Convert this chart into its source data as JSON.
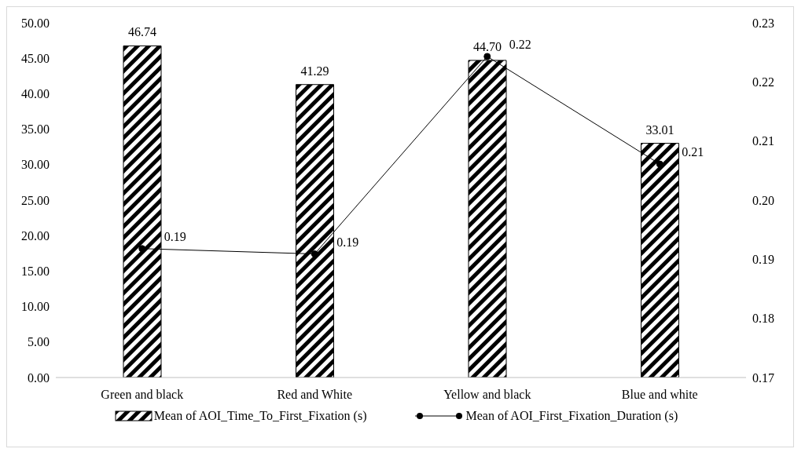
{
  "chart_data": {
    "type": "bar",
    "categories": [
      "Green and black",
      "Red and White",
      "Yellow and black",
      "Blue and white"
    ],
    "series": [
      {
        "name": "Mean of AOI_Time_To_First_Fixation (s)",
        "type": "bar",
        "color": "#000000",
        "values": [
          46.74,
          41.29,
          44.7,
          33.01
        ],
        "value_labels": [
          "46.74",
          "41.29",
          "44.70",
          "33.01"
        ]
      },
      {
        "name": "Mean of AOI_First_Fixation_Duration (s)",
        "type": "line",
        "axis": "y2",
        "color": "#000000",
        "values": [
          0.1918,
          0.1909,
          0.2243,
          0.2061
        ],
        "value_labels": [
          "0.19",
          "0.19",
          "0.22",
          "0.21"
        ]
      }
    ],
    "ylim": [
      0,
      50
    ],
    "yticks": [
      {
        "value": 0,
        "label": "0.00"
      },
      {
        "value": 5,
        "label": "5.00"
      },
      {
        "value": 10,
        "label": "10.00"
      },
      {
        "value": 15,
        "label": "15.00"
      },
      {
        "value": 20,
        "label": "20.00"
      },
      {
        "value": 25,
        "label": "25.00"
      },
      {
        "value": 30,
        "label": "30.00"
      },
      {
        "value": 35,
        "label": "35.00"
      },
      {
        "value": 40,
        "label": "40.00"
      },
      {
        "value": 45,
        "label": "45.00"
      },
      {
        "value": 50,
        "label": "50.00"
      }
    ],
    "y2lim": [
      0.17,
      0.23
    ],
    "y2ticks": [
      {
        "value": 0.17,
        "label": "0.17"
      },
      {
        "value": 0.18,
        "label": "0.18"
      },
      {
        "value": 0.19,
        "label": "0.19"
      },
      {
        "value": 0.2,
        "label": "0.20"
      },
      {
        "value": 0.21,
        "label": "0.21"
      },
      {
        "value": 0.22,
        "label": "0.22"
      },
      {
        "value": 0.23,
        "label": "0.23"
      }
    ],
    "grid": false,
    "legend": "bottom",
    "marker": "circle",
    "line_style": "solid"
  }
}
